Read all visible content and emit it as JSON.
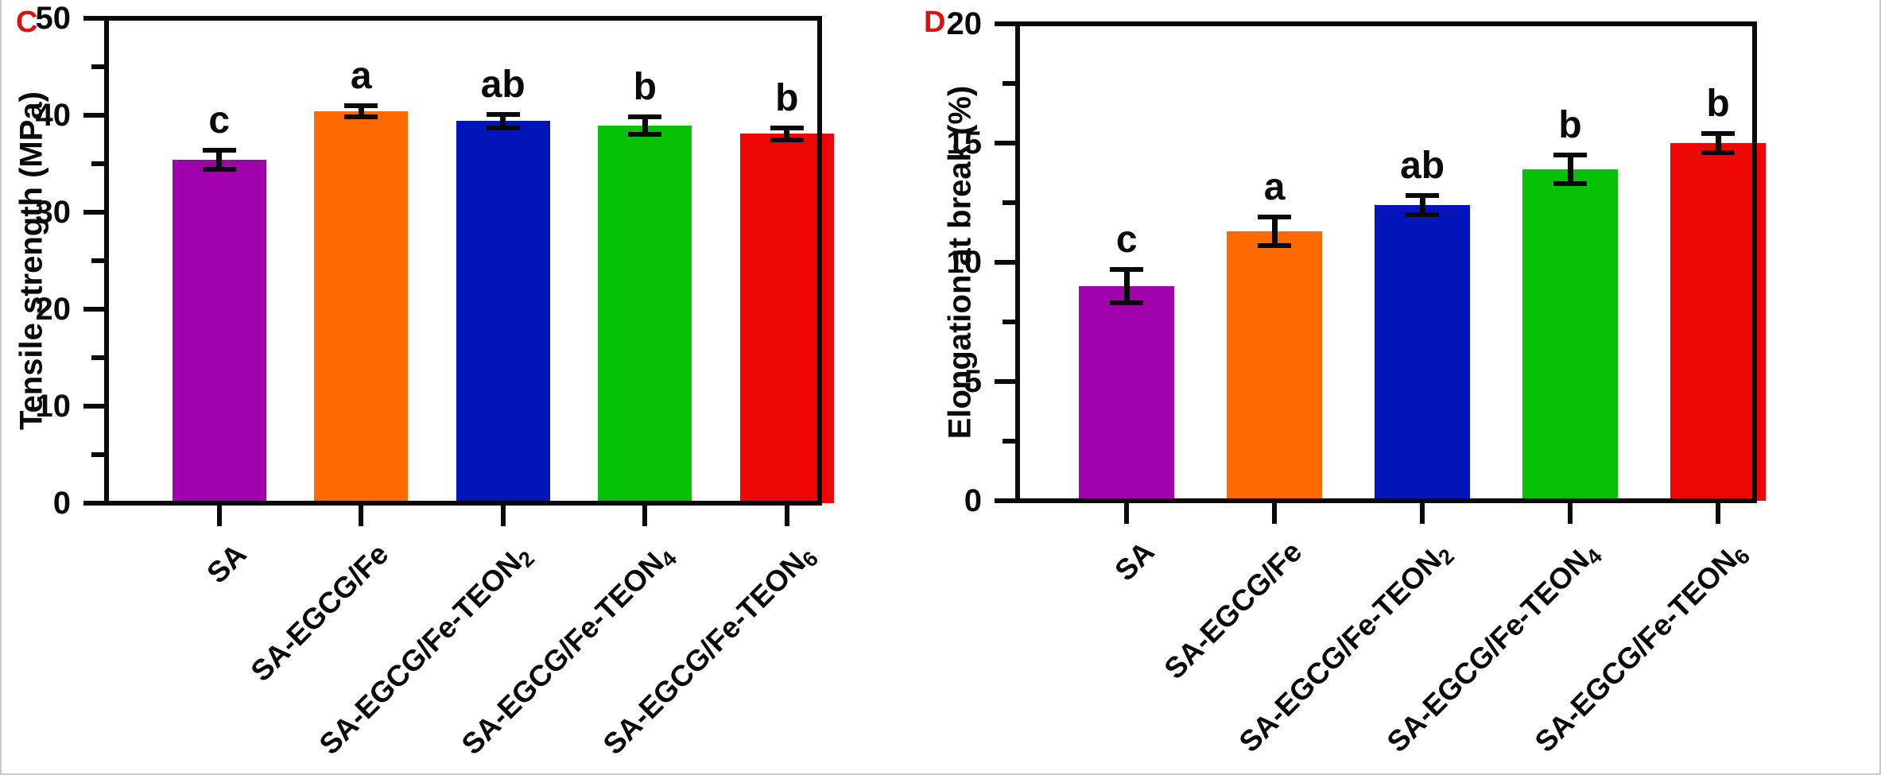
{
  "figure": {
    "background_color": "#ffffff",
    "axis_color": "#0a0a0a",
    "panel_label_color": "#DD1111",
    "panel_labels": [
      "C",
      "D"
    ]
  },
  "chart_data": [
    {
      "type": "bar",
      "panel_label": "C",
      "title": "",
      "xlabel": "",
      "ylabel": "Tensile strength (MPa)",
      "ylim": [
        0,
        50
      ],
      "ytick_major_step": 10,
      "ytick_minor_step": 5,
      "ytick_labels": [
        "0",
        "10",
        "20",
        "30",
        "40",
        "50"
      ],
      "grid": false,
      "legend": "none",
      "categories_plain": [
        "SA",
        "SA-EGCG/Fe",
        "SA-EGCG/Fe-TEON₂",
        "SA-EGCG/Fe-TEON₄",
        "SA-EGCG/Fe-TEON₆"
      ],
      "categories": [
        {
          "text": "SA",
          "sub": ""
        },
        {
          "text": "SA-EGCG/Fe",
          "sub": ""
        },
        {
          "text": "SA-EGCG/Fe-TEON",
          "sub": "2"
        },
        {
          "text": "SA-EGCG/Fe-TEON",
          "sub": "4"
        },
        {
          "text": "SA-EGCG/Fe-TEON",
          "sub": "6"
        }
      ],
      "values": [
        35.4,
        40.4,
        39.4,
        38.9,
        38.1
      ],
      "errors": [
        1.0,
        0.6,
        0.7,
        0.9,
        0.6
      ],
      "sig_letters": [
        "c",
        "a",
        "ab",
        "b",
        "b"
      ],
      "bar_colors": [
        "#A100AD",
        "#FF6A00",
        "#0215BB",
        "#06C206",
        "#EE0605"
      ]
    },
    {
      "type": "bar",
      "panel_label": "D",
      "title": "",
      "xlabel": "",
      "ylabel": "Elongation at break (%)",
      "ylim": [
        0,
        20
      ],
      "ytick_major_step": 5,
      "ytick_minor_step": 2.5,
      "ytick_labels": [
        "0",
        "5",
        "10",
        "15",
        "20"
      ],
      "grid": false,
      "legend": "none",
      "categories_plain": [
        "SA",
        "SA-EGCG/Fe",
        "SA-EGCG/Fe-TEON₂",
        "SA-EGCG/Fe-TEON₄",
        "SA-EGCG/Fe-TEON₆"
      ],
      "categories": [
        {
          "text": "SA",
          "sub": ""
        },
        {
          "text": "SA-EGCG/Fe",
          "sub": ""
        },
        {
          "text": "SA-EGCG/Fe-TEON",
          "sub": "2"
        },
        {
          "text": "SA-EGCG/Fe-TEON",
          "sub": "4"
        },
        {
          "text": "SA-EGCG/Fe-TEON",
          "sub": "6"
        }
      ],
      "values": [
        9.0,
        11.3,
        12.4,
        13.9,
        15.0
      ],
      "errors": [
        0.7,
        0.6,
        0.4,
        0.6,
        0.4
      ],
      "sig_letters": [
        "c",
        "a",
        "ab",
        "b",
        "b"
      ],
      "bar_colors": [
        "#A100AD",
        "#FF6A00",
        "#0215BB",
        "#06C206",
        "#EE0605"
      ]
    }
  ]
}
